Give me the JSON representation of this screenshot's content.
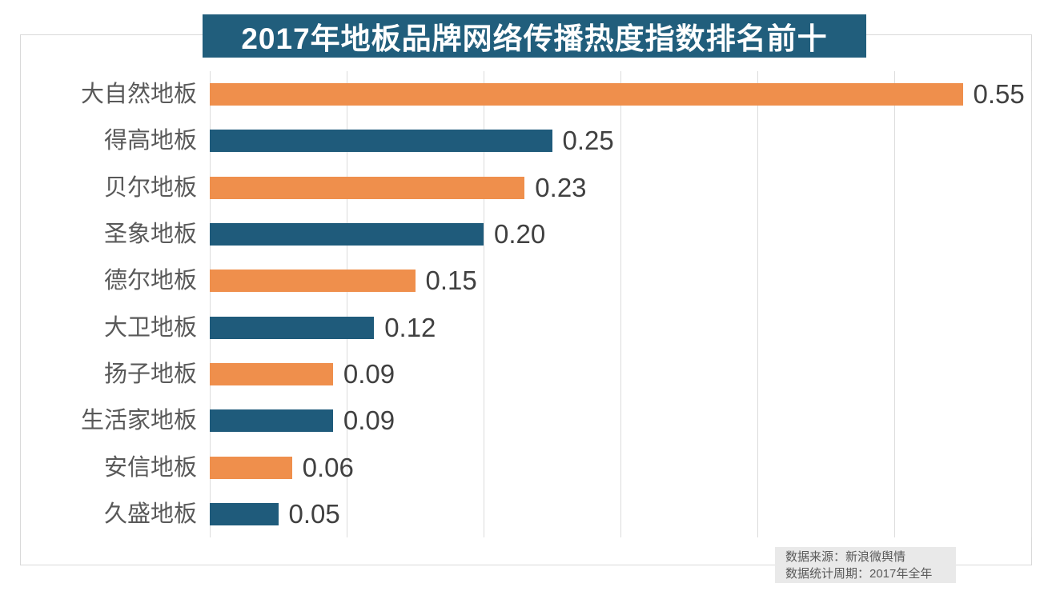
{
  "chart_data": {
    "type": "bar",
    "orientation": "horizontal",
    "title": "2017年地板品牌网络传播热度指数排名前十",
    "categories": [
      "大自然地板",
      "得高地板",
      "贝尔地板",
      "圣象地板",
      "德尔地板",
      "大卫地板",
      "扬子地板",
      "生活家地板",
      "安信地板",
      "久盛地板"
    ],
    "values": [
      0.55,
      0.25,
      0.23,
      0.2,
      0.15,
      0.12,
      0.09,
      0.09,
      0.06,
      0.05
    ],
    "value_labels": [
      "0.55",
      "0.25",
      "0.23",
      "0.20",
      "0.15",
      "0.12",
      "0.09",
      "0.09",
      "0.06",
      "0.05"
    ],
    "xlim": [
      0,
      0.6
    ],
    "gridline_step": 0.1,
    "grid": true,
    "legend": false,
    "colors": {
      "odd_bar_orange": "#EF8F4C",
      "even_bar_blue": "#1F5B7B",
      "title_bg": "#215E7C",
      "title_text": "#FFFFFF",
      "gridline": "#DCDCDC",
      "frame_border": "#D9D9D9",
      "category_label": "#595959",
      "value_label": "#404040",
      "note_bg": "#E9E9E9",
      "note_text": "#595959"
    }
  },
  "source_note": {
    "line1": "数据来源：新浪微舆情",
    "line2": "数据统计周期：2017年全年"
  }
}
